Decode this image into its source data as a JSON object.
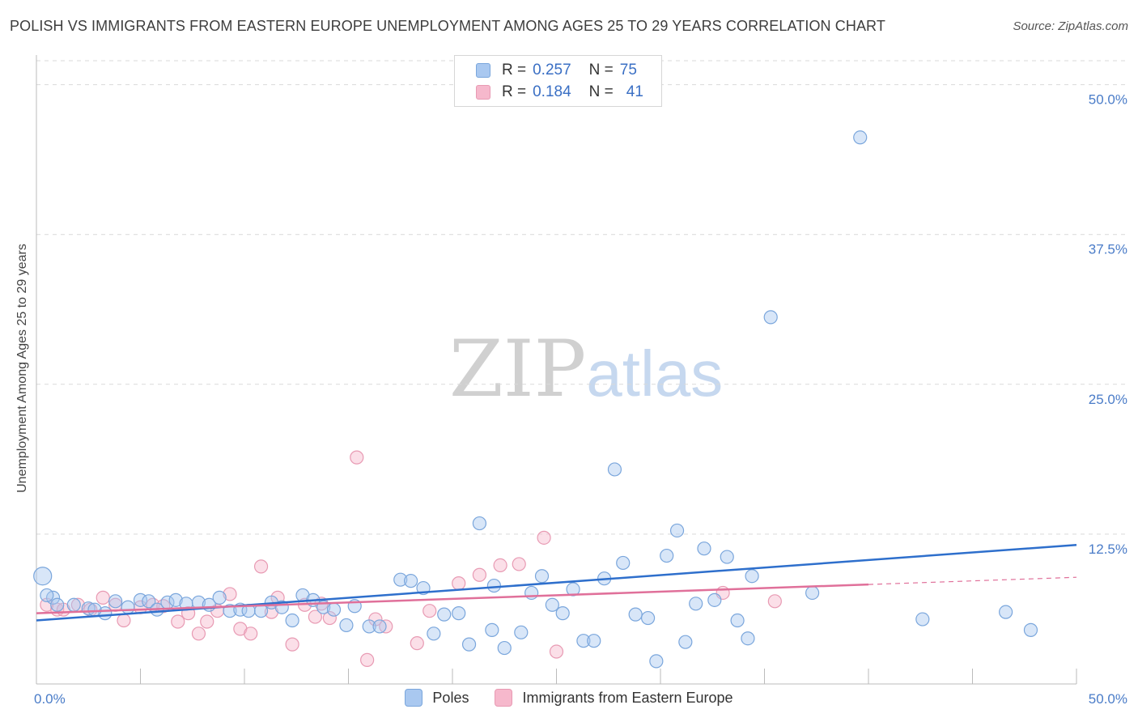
{
  "header": {
    "title": "POLISH VS IMMIGRANTS FROM EASTERN EUROPE UNEMPLOYMENT AMONG AGES 25 TO 29 YEARS CORRELATION CHART",
    "source": "Source: ZipAtlas.com"
  },
  "watermark": {
    "zip": "ZIP",
    "atlas": "atlas"
  },
  "legend_top": {
    "rows": [
      {
        "r_label": "R =",
        "r_value": "0.257",
        "n_label": "N =",
        "n_value": "75",
        "color": "#a9c8f0"
      },
      {
        "r_label": "R =",
        "r_value": "0.184",
        "n_label": "N =",
        "n_value": "41",
        "color": "#f6b8cc"
      }
    ]
  },
  "legend_bottom": {
    "items": [
      {
        "label": "Poles",
        "color": "#a9c8f0"
      },
      {
        "label": "Immigrants from Eastern Europe",
        "color": "#f6b8cc"
      }
    ]
  },
  "colors": {
    "poles_fill": "#a9c8f0",
    "poles_stroke": "#7aa6dc",
    "poles_line": "#2e6fcc",
    "immig_fill": "#f6b8cc",
    "immig_stroke": "#e89ab3",
    "immig_line": "#e0709a",
    "grid": "#d9d9d9",
    "tick_label": "#4a7cc8"
  },
  "chart_data": {
    "type": "scatter",
    "title": "POLISH VS IMMIGRANTS FROM EASTERN EUROPE UNEMPLOYMENT AMONG AGES 25 TO 29 YEARS CORRELATION CHART",
    "xlabel": "",
    "ylabel": "Unemployment Among Ages 25 to 29 years",
    "xlim": [
      0,
      50
    ],
    "ylim": [
      0,
      52
    ],
    "x_tick_labels": [
      "0.0%",
      "50.0%"
    ],
    "y_ticks": [
      12.5,
      25.0,
      37.5,
      50.0
    ],
    "y_tick_labels": [
      "12.5%",
      "25.0%",
      "37.5%",
      "50.0%"
    ],
    "grid": "horizontal dashed",
    "legend_placement": "top-center and bottom",
    "series": [
      {
        "name": "Poles",
        "r": 0.257,
        "n": 75,
        "trend": {
          "x": [
            0,
            50
          ],
          "y": [
            5.3,
            11.6
          ]
        },
        "points": [
          [
            0.3,
            9.0
          ],
          [
            0.8,
            7.2
          ],
          [
            1.0,
            6.6
          ],
          [
            1.8,
            6.6
          ],
          [
            2.5,
            6.3
          ],
          [
            3.3,
            5.9
          ],
          [
            3.8,
            6.9
          ],
          [
            4.4,
            6.4
          ],
          [
            5.0,
            7.0
          ],
          [
            5.4,
            6.9
          ],
          [
            5.8,
            6.2
          ],
          [
            6.3,
            6.8
          ],
          [
            6.7,
            7.0
          ],
          [
            7.2,
            6.7
          ],
          [
            7.8,
            6.8
          ],
          [
            8.3,
            6.6
          ],
          [
            8.8,
            7.2
          ],
          [
            9.3,
            6.1
          ],
          [
            9.8,
            6.2
          ],
          [
            10.2,
            6.1
          ],
          [
            10.8,
            6.1
          ],
          [
            11.3,
            6.8
          ],
          [
            11.8,
            6.4
          ],
          [
            12.8,
            7.4
          ],
          [
            13.3,
            7.0
          ],
          [
            12.3,
            5.3
          ],
          [
            13.8,
            6.4
          ],
          [
            14.3,
            6.2
          ],
          [
            15.3,
            6.5
          ],
          [
            14.9,
            4.9
          ],
          [
            16.0,
            4.8
          ],
          [
            16.5,
            4.8
          ],
          [
            17.5,
            8.7
          ],
          [
            18.0,
            8.6
          ],
          [
            18.6,
            8.0
          ],
          [
            19.1,
            4.2
          ],
          [
            19.6,
            5.8
          ],
          [
            20.3,
            5.9
          ],
          [
            20.8,
            3.3
          ],
          [
            21.3,
            13.4
          ],
          [
            21.9,
            4.5
          ],
          [
            22.5,
            3.0
          ],
          [
            22.0,
            8.2
          ],
          [
            23.3,
            4.3
          ],
          [
            23.8,
            7.6
          ],
          [
            24.3,
            9.0
          ],
          [
            24.8,
            6.6
          ],
          [
            25.3,
            5.9
          ],
          [
            25.8,
            7.9
          ],
          [
            26.3,
            3.6
          ],
          [
            26.8,
            3.6
          ],
          [
            27.3,
            8.8
          ],
          [
            27.8,
            17.9
          ],
          [
            28.2,
            10.1
          ],
          [
            28.8,
            5.8
          ],
          [
            29.4,
            5.5
          ],
          [
            29.8,
            1.9
          ],
          [
            30.3,
            10.7
          ],
          [
            30.8,
            12.8
          ],
          [
            31.2,
            3.5
          ],
          [
            31.7,
            6.7
          ],
          [
            32.1,
            11.3
          ],
          [
            32.6,
            7.0
          ],
          [
            33.2,
            10.6
          ],
          [
            33.7,
            5.3
          ],
          [
            34.2,
            3.8
          ],
          [
            34.4,
            9.0
          ],
          [
            35.3,
            30.6
          ],
          [
            37.3,
            7.6
          ],
          [
            39.6,
            45.6
          ],
          [
            42.6,
            5.4
          ],
          [
            46.6,
            6.0
          ],
          [
            47.8,
            4.5
          ],
          [
            0.5,
            7.4
          ],
          [
            2.8,
            6.2
          ]
        ]
      },
      {
        "name": "Immigrants from Eastern Europe",
        "r": 0.184,
        "n": 41,
        "trend": {
          "x": [
            0,
            40
          ],
          "y": [
            5.9,
            8.3
          ]
        },
        "trend_extension": {
          "x": [
            40,
            50
          ],
          "y": [
            8.3,
            8.9
          ]
        },
        "points": [
          [
            0.5,
            6.6
          ],
          [
            1.0,
            6.2
          ],
          [
            1.3,
            6.2
          ],
          [
            2.0,
            6.6
          ],
          [
            2.6,
            6.2
          ],
          [
            3.2,
            7.2
          ],
          [
            3.8,
            6.6
          ],
          [
            4.2,
            5.3
          ],
          [
            5.0,
            6.4
          ],
          [
            5.6,
            6.6
          ],
          [
            6.1,
            6.5
          ],
          [
            6.8,
            5.2
          ],
          [
            7.3,
            5.9
          ],
          [
            7.8,
            4.2
          ],
          [
            8.2,
            5.2
          ],
          [
            8.7,
            6.1
          ],
          [
            9.3,
            7.5
          ],
          [
            9.8,
            4.6
          ],
          [
            10.3,
            4.2
          ],
          [
            10.8,
            9.8
          ],
          [
            11.3,
            6.0
          ],
          [
            11.6,
            7.2
          ],
          [
            12.3,
            3.3
          ],
          [
            12.9,
            6.6
          ],
          [
            13.4,
            5.6
          ],
          [
            13.7,
            6.7
          ],
          [
            14.1,
            5.5
          ],
          [
            15.4,
            18.9
          ],
          [
            15.9,
            2.0
          ],
          [
            16.3,
            5.4
          ],
          [
            16.8,
            4.8
          ],
          [
            18.3,
            3.4
          ],
          [
            18.9,
            6.1
          ],
          [
            20.3,
            8.4
          ],
          [
            21.3,
            9.1
          ],
          [
            22.3,
            9.9
          ],
          [
            23.2,
            10.0
          ],
          [
            24.4,
            12.2
          ],
          [
            25.0,
            2.7
          ],
          [
            33.0,
            7.6
          ],
          [
            35.5,
            6.9
          ]
        ]
      }
    ]
  }
}
